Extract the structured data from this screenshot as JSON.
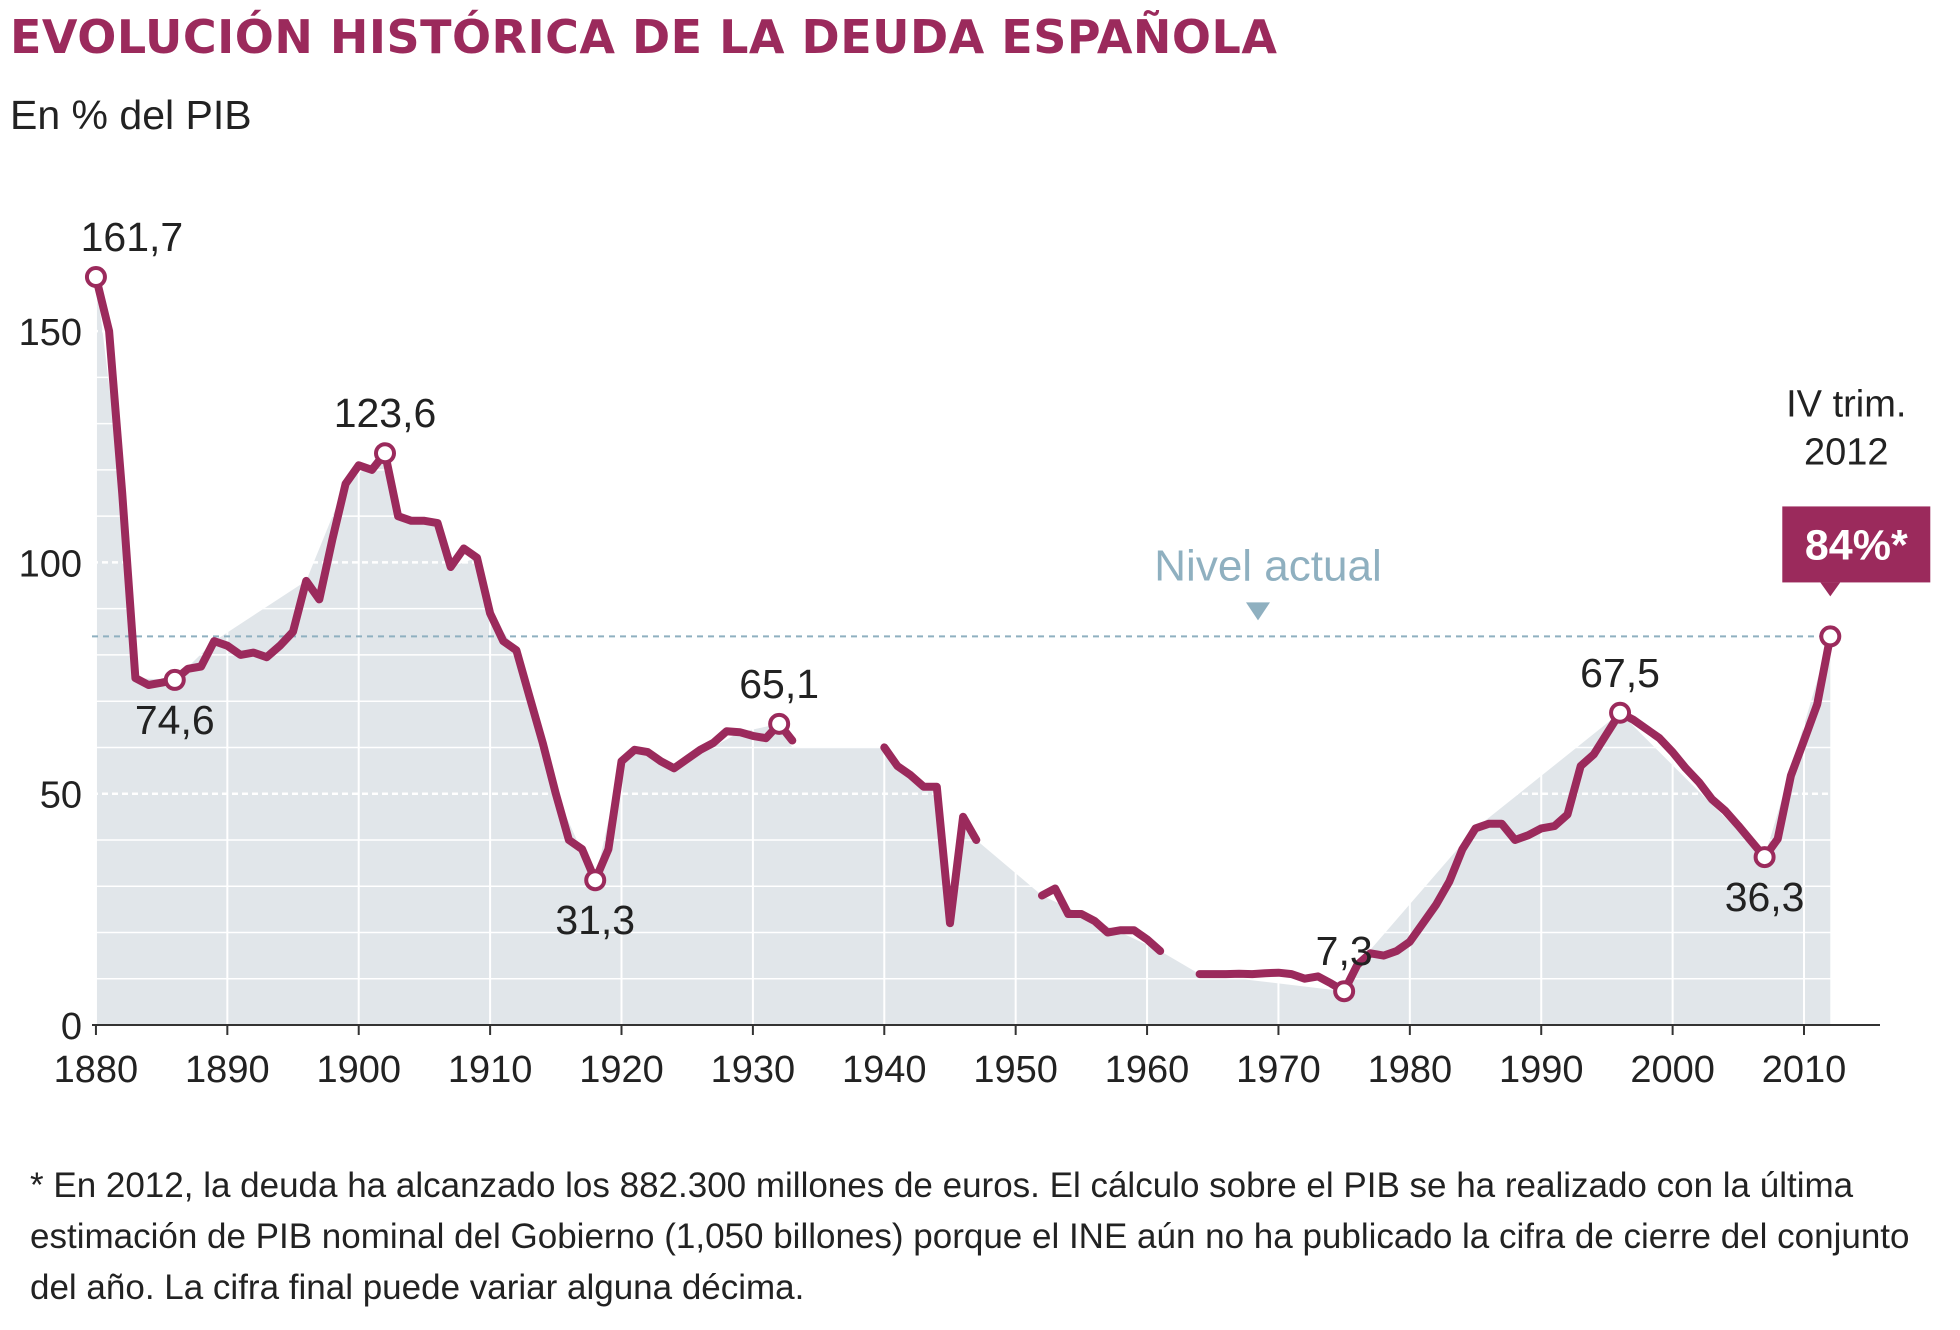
{
  "header": {
    "title": "EVOLUCIÓN HISTÓRICA DE LA DEUDA ESPAÑOLA",
    "subtitle": "En % del PIB"
  },
  "footnote": "* En 2012, la deuda ha alcanzado los 882.300 millones de euros. El cálculo sobre el PIB se ha realizado con la última estimación de PIB nominal del Gobierno (1,050 billones) porque el INE aún no ha publicado la cifra de cierre del conjunto del año. La cifra final puede variar alguna décima.",
  "colors": {
    "line": "#9b2a5c",
    "area": "#e1e6ea",
    "grid": "#ffffff",
    "reference": "#8fb0c0",
    "title": "#9b2a5c"
  },
  "chart_data": {
    "type": "line",
    "title": "EVOLUCIÓN HISTÓRICA DE LA DEUDA ESPAÑOLA",
    "ylabel": "En % del PIB",
    "xlabel": "",
    "xlim": [
      1879.7,
      2013.5
    ],
    "ylim": [
      0,
      161.7
    ],
    "x_ticks": [
      1880,
      1890,
      1900,
      1910,
      1920,
      1930,
      1940,
      1950,
      1960,
      1970,
      1980,
      1990,
      2000,
      2010
    ],
    "y_ticks": [
      0,
      50,
      100,
      150
    ],
    "reference_line": {
      "value": 84,
      "label": "Nivel actual"
    },
    "series": [
      {
        "name": "Deuda % PIB",
        "segments": [
          [
            [
              1880,
              161.7
            ],
            [
              1881,
              150
            ],
            [
              1882,
              115
            ],
            [
              1883,
              75
            ],
            [
              1884,
              73.5
            ],
            [
              1885,
              74
            ],
            [
              1886,
              74.6
            ],
            [
              1887,
              77
            ],
            [
              1888,
              77.5
            ],
            [
              1889,
              83
            ],
            [
              1890,
              82
            ],
            [
              1891,
              80
            ],
            [
              1892,
              80.5
            ],
            [
              1893,
              79.5
            ],
            [
              1894,
              82
            ],
            [
              1895,
              85
            ],
            [
              1896,
              96
            ],
            [
              1897,
              92
            ],
            [
              1898,
              105
            ],
            [
              1899,
              117
            ],
            [
              1900,
              121
            ],
            [
              1901,
              120
            ],
            [
              1902,
              123.6
            ],
            [
              1903,
              110
            ],
            [
              1904,
              109
            ],
            [
              1905,
              109
            ],
            [
              1906,
              108.5
            ],
            [
              1907,
              99
            ],
            [
              1908,
              103
            ],
            [
              1909,
              101
            ],
            [
              1910,
              89
            ],
            [
              1911,
              83
            ],
            [
              1912,
              81
            ],
            [
              1913,
              71
            ],
            [
              1914,
              61
            ],
            [
              1915,
              50
            ],
            [
              1916,
              40
            ],
            [
              1917,
              38
            ],
            [
              1918,
              31.3
            ],
            [
              1919,
              38
            ],
            [
              1920,
              57
            ],
            [
              1921,
              59.5
            ],
            [
              1922,
              59
            ],
            [
              1923,
              57
            ],
            [
              1924,
              55.5
            ],
            [
              1925,
              57.5
            ],
            [
              1926,
              59.5
            ],
            [
              1927,
              61
            ],
            [
              1928,
              63.5
            ],
            [
              1929,
              63.3
            ],
            [
              1930,
              62.5
            ],
            [
              1931,
              62
            ],
            [
              1932,
              65.1
            ],
            [
              1933,
              61.5
            ]
          ],
          [
            [
              1940,
              60
            ],
            [
              1941,
              56
            ],
            [
              1942,
              54
            ],
            [
              1943,
              51.5
            ],
            [
              1944,
              51.5
            ],
            [
              1945,
              22
            ],
            [
              1946,
              45
            ],
            [
              1947,
              40
            ]
          ],
          [
            [
              1952,
              28
            ],
            [
              1953,
              29.5
            ],
            [
              1954,
              24
            ],
            [
              1955,
              24
            ],
            [
              1956,
              22.5
            ],
            [
              1957,
              20
            ],
            [
              1958,
              20.5
            ],
            [
              1959,
              20.5
            ],
            [
              1960,
              18.5
            ],
            [
              1961,
              16
            ]
          ],
          [
            [
              1964,
              11
            ],
            [
              1965,
              11
            ],
            [
              1966,
              11
            ],
            [
              1967,
              11.1
            ],
            [
              1968,
              11
            ],
            [
              1969,
              11.2
            ],
            [
              1970,
              11.3
            ],
            [
              1971,
              11
            ],
            [
              1972,
              10
            ],
            [
              1973,
              10.5
            ],
            [
              1974,
              9
            ],
            [
              1975,
              7.3
            ],
            [
              1976,
              13
            ],
            [
              1977,
              15.5
            ],
            [
              1978,
              15
            ],
            [
              1979,
              16
            ],
            [
              1980,
              18
            ],
            [
              1981,
              22
            ],
            [
              1982,
              26
            ],
            [
              1983,
              31
            ],
            [
              1984,
              38
            ],
            [
              1985,
              42.5
            ],
            [
              1986,
              43.5
            ],
            [
              1987,
              43.5
            ],
            [
              1988,
              40
            ],
            [
              1989,
              41
            ],
            [
              1990,
              42.5
            ],
            [
              1991,
              43
            ],
            [
              1992,
              45.5
            ],
            [
              1993,
              56
            ],
            [
              1994,
              58.5
            ],
            [
              1995,
              63
            ],
            [
              1996,
              67.5
            ],
            [
              1997,
              66
            ],
            [
              1998,
              64
            ],
            [
              1999,
              62
            ],
            [
              2000,
              59
            ],
            [
              2001,
              55.5
            ],
            [
              2002,
              52.5
            ],
            [
              2003,
              48.8
            ],
            [
              2004,
              46.3
            ],
            [
              2005,
              43.1
            ],
            [
              2006,
              39.7
            ],
            [
              2007,
              36.3
            ],
            [
              2008,
              40.2
            ],
            [
              2009,
              53.9
            ],
            [
              2010,
              61.5
            ],
            [
              2011,
              69.3
            ],
            [
              2012,
              84
            ]
          ]
        ]
      }
    ],
    "area_fill": [
      [
        1880,
        161.7
      ],
      [
        1882,
        115
      ],
      [
        1883,
        75
      ],
      [
        1886,
        74.6
      ],
      [
        1889,
        83
      ],
      [
        1896,
        96
      ],
      [
        1899,
        117
      ],
      [
        1902,
        123.6
      ],
      [
        1903,
        110
      ],
      [
        1906,
        108.5
      ],
      [
        1907,
        99
      ],
      [
        1909,
        101
      ],
      [
        1910,
        89
      ],
      [
        1912,
        81
      ],
      [
        1915,
        50
      ],
      [
        1918,
        31.3
      ],
      [
        1920,
        57
      ],
      [
        1921,
        59.5
      ],
      [
        1924,
        55.5
      ],
      [
        1929,
        63.3
      ],
      [
        1932,
        65.1
      ],
      [
        1933,
        60
      ],
      [
        1940,
        60
      ],
      [
        1943,
        51.5
      ],
      [
        1944,
        51.5
      ],
      [
        1945,
        22
      ],
      [
        1946,
        45
      ],
      [
        1947,
        40
      ],
      [
        1952,
        28
      ],
      [
        1961,
        16
      ],
      [
        1964,
        11
      ],
      [
        1975,
        7.3
      ],
      [
        1976,
        13
      ],
      [
        1985,
        42.5
      ],
      [
        1996,
        67.5
      ],
      [
        2007,
        36.3
      ],
      [
        2012,
        84
      ]
    ],
    "annotations": [
      {
        "x": 1880,
        "y": 161.7,
        "label": "161,7",
        "position": "above"
      },
      {
        "x": 1886,
        "y": 74.6,
        "label": "74,6",
        "position": "below"
      },
      {
        "x": 1902,
        "y": 123.6,
        "label": "123,6",
        "position": "above"
      },
      {
        "x": 1918,
        "y": 31.3,
        "label": "31,3",
        "position": "below"
      },
      {
        "x": 1932,
        "y": 65.1,
        "label": "65,1",
        "position": "above"
      },
      {
        "x": 1975,
        "y": 7.3,
        "label": "7,3",
        "position": "above"
      },
      {
        "x": 1996,
        "y": 67.5,
        "label": "67,5",
        "position": "above"
      },
      {
        "x": 2007,
        "y": 36.3,
        "label": "36,3",
        "position": "below"
      },
      {
        "x": 2012,
        "y": 84,
        "label": "84%*",
        "position": "badge",
        "period": [
          "IV trim.",
          "2012"
        ]
      }
    ]
  }
}
